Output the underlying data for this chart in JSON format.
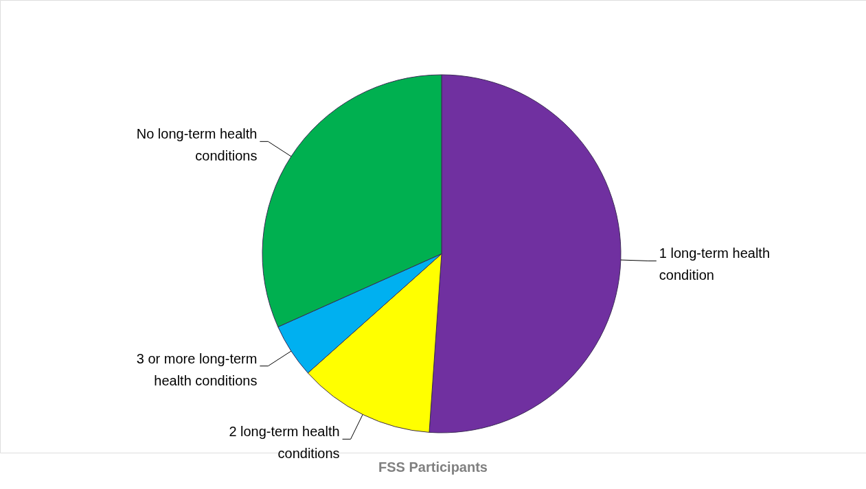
{
  "chart_data": {
    "type": "pie",
    "title": "FSS Participants",
    "categories": [
      "1 long-term health condition",
      "2 long-term health conditions",
      "3 or more long-term health conditions",
      "No long-term health conditions"
    ],
    "values": [
      51.1,
      12.3,
      4.9,
      31.7
    ],
    "colors": [
      "#7030a0",
      "#ffff00",
      "#00b0f0",
      "#00b050"
    ],
    "legend": false
  }
}
